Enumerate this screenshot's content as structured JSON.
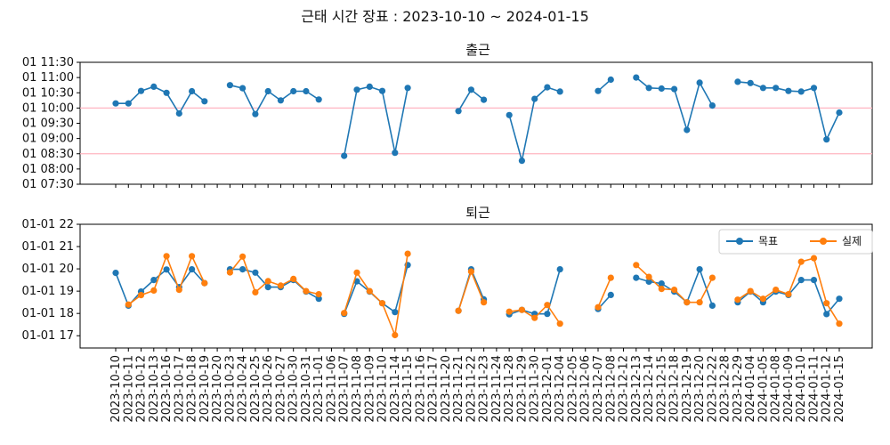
{
  "chart_data": {
    "title": "근태 시간 장표 : 2023-10-10 ~ 2024-01-15",
    "categories": [
      "2023-10-10",
      "2023-10-11",
      "2023-10-12",
      "2023-10-13",
      "2023-10-16",
      "2023-10-17",
      "2023-10-18",
      "2023-10-19",
      "2023-10-20",
      "2023-10-23",
      "2023-10-24",
      "2023-10-25",
      "2023-10-26",
      "2023-10-27",
      "2023-10-30",
      "2023-10-31",
      "2023-11-01",
      "2023-11-06",
      "2023-11-07",
      "2023-11-08",
      "2023-11-09",
      "2023-11-10",
      "2023-11-14",
      "2023-11-15",
      "2023-11-16",
      "2023-11-17",
      "2023-11-20",
      "2023-11-21",
      "2023-11-22",
      "2023-11-23",
      "2023-11-24",
      "2023-11-28",
      "2023-11-29",
      "2023-11-30",
      "2023-12-01",
      "2023-12-04",
      "2023-12-05",
      "2023-12-06",
      "2023-12-07",
      "2023-12-08",
      "2023-12-12",
      "2023-12-13",
      "2023-12-14",
      "2023-12-15",
      "2023-12-18",
      "2023-12-19",
      "2023-12-20",
      "2023-12-22",
      "2023-12-28",
      "2023-12-29",
      "2024-01-04",
      "2024-01-05",
      "2024-01-08",
      "2024-01-09",
      "2024-01-10",
      "2024-01-11",
      "2024-01-12",
      "2024-01-15"
    ],
    "charts": [
      {
        "type": "line",
        "subtitle": "출근",
        "yticks": [
          "01 07:30",
          "01 08:00",
          "01 08:30",
          "01 09:00",
          "01 09:30",
          "01 10:00",
          "01 10:30",
          "01 11:00",
          "01 11:30"
        ],
        "ylim_hours": [
          7.5,
          11.5
        ],
        "hlines_hours": [
          10.0,
          8.5
        ],
        "hline_color": "#ffb6c1",
        "series": [
          {
            "color": "#1f77b4",
            "values": [
              10.15,
              10.15,
              10.56,
              10.7,
              10.5,
              9.82,
              10.55,
              10.22,
              null,
              10.75,
              10.65,
              9.8,
              10.55,
              10.25,
              10.55,
              10.55,
              10.28,
              null,
              8.43,
              10.6,
              10.7,
              10.56,
              8.53,
              10.66,
              null,
              null,
              null,
              9.9,
              10.6,
              10.27,
              null,
              9.77,
              8.27,
              10.3,
              10.68,
              10.54,
              null,
              null,
              10.56,
              10.93,
              null,
              11.0,
              10.66,
              10.64,
              10.62,
              9.28,
              10.83,
              10.08,
              null,
              10.86,
              10.82,
              10.66,
              10.66,
              10.56,
              10.54,
              10.66,
              8.97,
              9.85
            ]
          }
        ]
      },
      {
        "type": "line",
        "subtitle": "퇴근",
        "yticks": [
          "01-01 17",
          "01-01 18",
          "01-01 19",
          "01-01 20",
          "01-01 21",
          "01-01 22"
        ],
        "ylim_hours": [
          16.45,
          22.0
        ],
        "legend_position": "top-right",
        "series": [
          {
            "name": "목표",
            "color": "#1f77b4",
            "values": [
              19.82,
              18.35,
              18.98,
              19.5,
              19.97,
              19.18,
              19.98,
              19.36,
              null,
              19.98,
              19.98,
              19.83,
              19.18,
              19.18,
              19.5,
              18.98,
              18.66,
              null,
              17.98,
              19.44,
              18.98,
              18.46,
              18.06,
              20.17,
              null,
              null,
              null,
              18.12,
              19.98,
              18.63,
              null,
              17.96,
              18.16,
              17.98,
              17.98,
              19.98,
              null,
              null,
              18.2,
              18.83,
              null,
              19.6,
              19.43,
              19.34,
              18.98,
              18.5,
              19.98,
              18.35,
              null,
              18.5,
              18.98,
              18.5,
              18.98,
              18.83,
              19.5,
              19.5,
              17.97,
              18.66
            ]
          },
          {
            "name": "실제",
            "color": "#ff7f0e",
            "values": [
              null,
              18.4,
              18.82,
              19.03,
              20.57,
              19.06,
              20.57,
              19.36,
              null,
              19.84,
              20.55,
              18.95,
              19.45,
              19.25,
              19.55,
              19.0,
              18.86,
              null,
              18.02,
              19.83,
              19.0,
              18.46,
              17.03,
              20.68,
              null,
              null,
              null,
              18.12,
              19.88,
              18.5,
              null,
              18.08,
              18.16,
              17.8,
              18.38,
              17.54,
              null,
              null,
              18.28,
              19.6,
              null,
              20.17,
              19.64,
              19.1,
              19.06,
              18.5,
              18.5,
              19.6,
              null,
              18.62,
              19.0,
              18.66,
              19.06,
              18.86,
              20.32,
              20.48,
              18.46,
              17.54
            ]
          }
        ]
      }
    ]
  }
}
